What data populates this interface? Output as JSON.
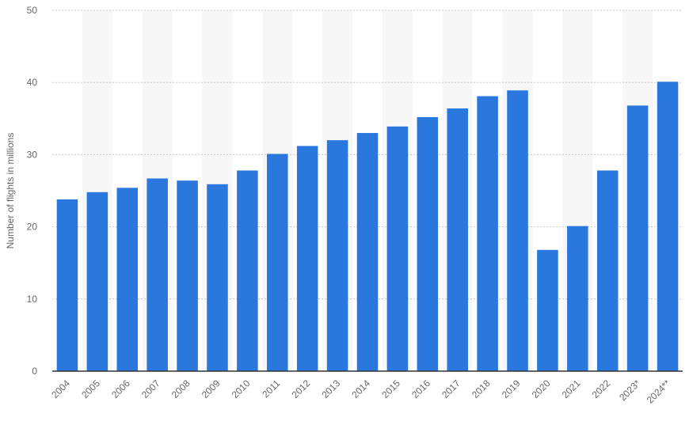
{
  "chart_data": {
    "type": "bar",
    "title": "",
    "xlabel": "",
    "ylabel": "Number of flights in millions",
    "ylim": [
      0,
      50
    ],
    "yticks": [
      0,
      10,
      20,
      30,
      40,
      50
    ],
    "grid": true,
    "categories": [
      "2004",
      "2005",
      "2006",
      "2007",
      "2008",
      "2009",
      "2010",
      "2011",
      "2012",
      "2013",
      "2014",
      "2015",
      "2016",
      "2017",
      "2018",
      "2019",
      "2020",
      "2021",
      "2022",
      "2023*",
      "2024**"
    ],
    "values": [
      23.8,
      24.8,
      25.4,
      26.7,
      26.4,
      25.9,
      27.8,
      30.1,
      31.2,
      32.0,
      33.0,
      33.9,
      35.2,
      36.4,
      38.1,
      38.9,
      16.8,
      20.1,
      27.8,
      36.8,
      40.1
    ],
    "colors": {
      "bar": "#2a77dd",
      "band": "#f7f7f7",
      "grid": "#c9c9c9",
      "axis": "#333333",
      "text": "#666666"
    }
  }
}
